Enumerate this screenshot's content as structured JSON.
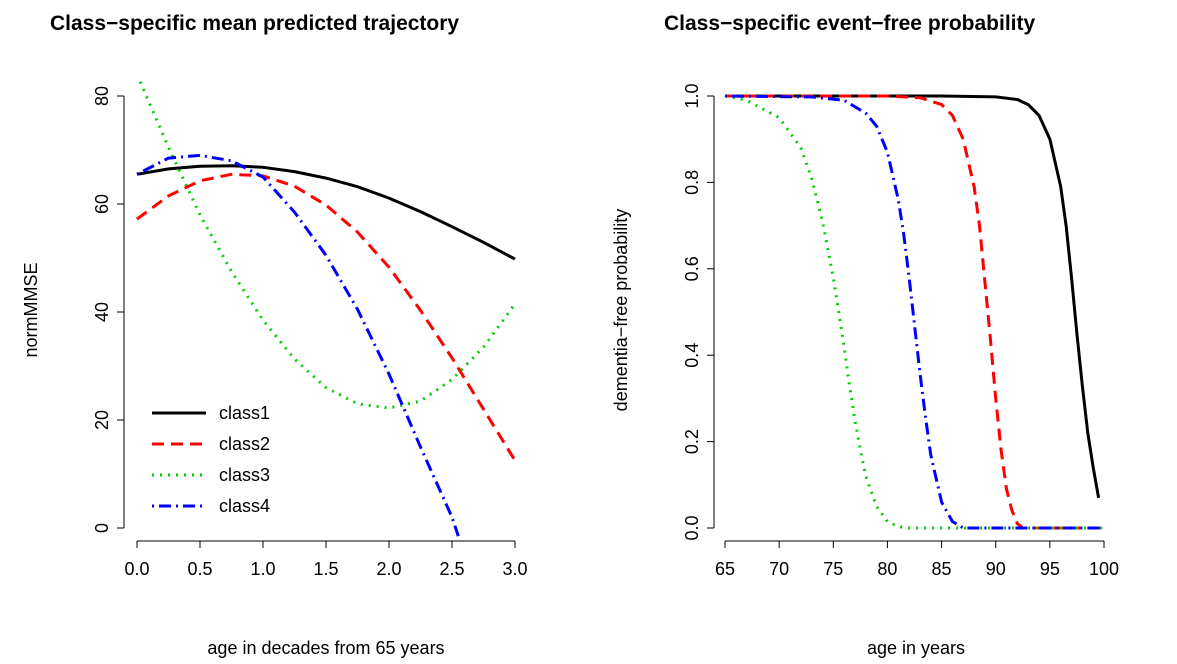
{
  "chart_data": [
    {
      "type": "line",
      "title": "Class−specific mean predicted trajectory",
      "xlabel": "age in decades from 65 years",
      "ylabel": "normMMSE",
      "xlim": [
        0,
        3
      ],
      "ylim": [
        0,
        85
      ],
      "xticks": [
        "0.0",
        "0.5",
        "1.0",
        "1.5",
        "2.0",
        "2.5",
        "3.0"
      ],
      "yticks": [
        "0",
        "20",
        "40",
        "60",
        "80"
      ],
      "legend_position": "bottom-left",
      "series": [
        {
          "name": "class1",
          "color": "#000000",
          "dash": "solid",
          "x": [
            0,
            0.25,
            0.5,
            0.75,
            1.0,
            1.25,
            1.5,
            1.75,
            2.0,
            2.25,
            2.5,
            2.75,
            3.0
          ],
          "y": [
            65.5,
            66.5,
            67.0,
            67.1,
            66.8,
            66.0,
            64.8,
            63.2,
            61.1,
            58.6,
            55.8,
            52.9,
            49.8
          ]
        },
        {
          "name": "class2",
          "color": "#ff0000",
          "dash": "dashed",
          "x": [
            0,
            0.25,
            0.5,
            0.75,
            1.0,
            1.25,
            1.5,
            1.75,
            2.0,
            2.25,
            2.5,
            2.75,
            3.0
          ],
          "y": [
            57.2,
            61.5,
            64.3,
            65.5,
            65.2,
            63.3,
            59.8,
            54.8,
            48.3,
            40.3,
            31.5,
            22.0,
            12.5
          ]
        },
        {
          "name": "class3",
          "color": "#00cd00",
          "dash": "dotted",
          "x": [
            0,
            0.25,
            0.5,
            0.75,
            1.0,
            1.25,
            1.5,
            1.75,
            2.0,
            2.25,
            2.5,
            2.75,
            3.0
          ],
          "y": [
            84.0,
            70.5,
            58.0,
            47.5,
            38.5,
            31.3,
            26.0,
            23.0,
            22.2,
            23.5,
            27.5,
            33.5,
            41.5
          ]
        },
        {
          "name": "class4",
          "color": "#0000ff",
          "dash": "dotdash",
          "x": [
            0,
            0.25,
            0.5,
            0.75,
            1.0,
            1.25,
            1.5,
            1.75,
            2.0,
            2.25,
            2.5,
            2.55
          ],
          "y": [
            65.5,
            68.5,
            69.0,
            68.0,
            65.0,
            58.5,
            50.5,
            40.5,
            28.5,
            15.0,
            2.0,
            -1.5
          ]
        }
      ]
    },
    {
      "type": "line",
      "title": "Class−specific event−free probability",
      "xlabel": "age in years",
      "ylabel": "dementia−free probability",
      "xlim": [
        65,
        100
      ],
      "ylim": [
        0,
        1
      ],
      "xticks": [
        "65",
        "70",
        "75",
        "80",
        "85",
        "90",
        "95",
        "100"
      ],
      "yticks": [
        "0.0",
        "0.2",
        "0.4",
        "0.6",
        "0.8",
        "1.0"
      ],
      "series": [
        {
          "name": "class1",
          "color": "#000000",
          "dash": "solid",
          "x": [
            65,
            85,
            90,
            92,
            93,
            94,
            95,
            96,
            96.5,
            97,
            97.5,
            98,
            98.5,
            99,
            99.5
          ],
          "y": [
            1.0,
            1.0,
            0.998,
            0.992,
            0.98,
            0.955,
            0.9,
            0.79,
            0.7,
            0.58,
            0.45,
            0.33,
            0.22,
            0.14,
            0.07
          ]
        },
        {
          "name": "class2",
          "color": "#ff0000",
          "dash": "dashed",
          "x": [
            65,
            80,
            83,
            85,
            86,
            87,
            88,
            88.5,
            89,
            89.5,
            90,
            90.5,
            91,
            91.5,
            92,
            92.5,
            100
          ],
          "y": [
            1.0,
            1.0,
            0.996,
            0.98,
            0.955,
            0.9,
            0.79,
            0.7,
            0.57,
            0.44,
            0.3,
            0.18,
            0.09,
            0.04,
            0.01,
            0.0,
            0.0
          ]
        },
        {
          "name": "class3",
          "color": "#00cd00",
          "dash": "dotted",
          "x": [
            65,
            67,
            70,
            72,
            73,
            74,
            75,
            75.5,
            76,
            76.5,
            77,
            77.5,
            78,
            79,
            80,
            81,
            82,
            100
          ],
          "y": [
            1.0,
            0.99,
            0.95,
            0.88,
            0.81,
            0.71,
            0.58,
            0.5,
            0.42,
            0.33,
            0.25,
            0.18,
            0.12,
            0.05,
            0.015,
            0.003,
            0.0,
            0.0
          ]
        },
        {
          "name": "class4",
          "color": "#0000ff",
          "dash": "dotdash",
          "x": [
            65,
            73,
            76,
            78,
            79,
            80,
            81,
            81.5,
            82,
            82.5,
            83,
            83.5,
            84,
            85,
            86,
            87,
            100
          ],
          "y": [
            1.0,
            0.998,
            0.99,
            0.96,
            0.93,
            0.87,
            0.76,
            0.68,
            0.58,
            0.47,
            0.36,
            0.26,
            0.17,
            0.06,
            0.015,
            0.0,
            0.0
          ]
        }
      ]
    }
  ]
}
